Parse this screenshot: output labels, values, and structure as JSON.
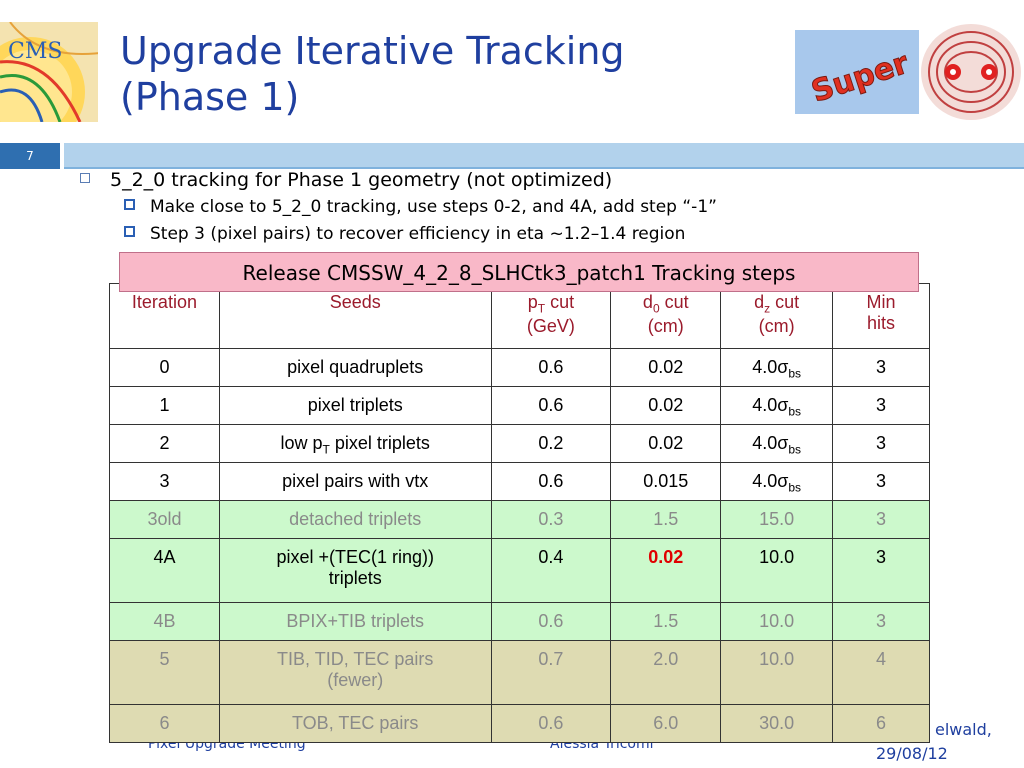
{
  "slide_number": "7",
  "title_line1": "Upgrade Iterative Tracking",
  "title_line2": "(Phase 1)",
  "logos": {
    "cms": "CMS",
    "super": "Super"
  },
  "bullets": {
    "main": "5_2_0 tracking for Phase 1 geometry (not optimized)",
    "sub1": "Make close to 5_2_0 tracking, use steps 0-2, and 4A, add step “-1”",
    "sub2": "Step 3 (pixel pairs) to recover efficiency in eta ~1.2–1.4 region"
  },
  "banner": "Release CMSSW_4_2_8_SLHCtk3_patch1 Tracking steps",
  "table": {
    "headers": {
      "iteration": "Iteration",
      "seeds": "Seeds",
      "pt": "p",
      "pt_sub": "T",
      "pt_rest": " cut",
      "pt_unit": "(GeV)",
      "d0": "d",
      "d0_sub": "0",
      "d0_rest": " cut",
      "d0_unit": "(cm)",
      "dz": "d",
      "dz_sub": "z",
      "dz_rest": " cut",
      "dz_unit": "(cm)",
      "minhits_1": "Min",
      "minhits_2": "hits"
    },
    "rows": [
      {
        "iter": "0",
        "seeds": "pixel quadruplets",
        "pt": "0.6",
        "d0": "0.02",
        "dz": "4.0σ",
        "dz_sub": "bs",
        "hits": "3"
      },
      {
        "iter": "1",
        "seeds": "pixel triplets",
        "pt": "0.6",
        "d0": "0.02",
        "dz": "4.0σ",
        "dz_sub": "bs",
        "hits": "3"
      },
      {
        "iter": "2",
        "seeds_a": "low p",
        "seeds_sub": "T",
        "seeds_b": " pixel triplets",
        "pt": "0.2",
        "d0": "0.02",
        "dz": "4.0σ",
        "dz_sub": "bs",
        "hits": "3"
      },
      {
        "iter": "3",
        "seeds": "pixel pairs with vtx",
        "pt": "0.6",
        "d0": "0.015",
        "dz": "4.0σ",
        "dz_sub": "bs",
        "hits": "3"
      },
      {
        "iter": "3old",
        "seeds": "detached triplets",
        "pt": "0.3",
        "d0": "1.5",
        "dz": "15.0",
        "hits": "3"
      },
      {
        "iter": "4A",
        "seeds_a": "pixel +(TEC(1 ring))",
        "seeds_b": "triplets",
        "pt": "0.4",
        "d0": "0.02",
        "dz": "10.0",
        "hits": "3"
      },
      {
        "iter": "4B",
        "seeds": "BPIX+TIB triplets",
        "pt": "0.6",
        "d0": "1.5",
        "dz": "10.0",
        "hits": "3"
      },
      {
        "iter": "5",
        "seeds_a": "TIB, TID, TEC pairs",
        "seeds_b": "(fewer)",
        "pt": "0.7",
        "d0": "2.0",
        "dz": "10.0",
        "hits": "4"
      },
      {
        "iter": "6",
        "seeds": "TOB, TEC pairs",
        "pt": "0.6",
        "d0": "6.0",
        "dz": "30.0",
        "hits": "6"
      }
    ]
  },
  "footer": {
    "left": "Pixel Upgrade Meeting",
    "middle": "Alessia Tricomi",
    "right_line1": "elwald,",
    "right_line2": "29/08/12"
  },
  "colors": {
    "title": "#1f3f9f",
    "band": "#b2d2ec",
    "slide_number_bg": "#2f6fb0",
    "banner_bg": "#f9b8c8",
    "header_text": "#9b1b2c",
    "green_row": "#ccf9cc",
    "olive_row": "#dedbb2",
    "highlight": "#e00000"
  }
}
